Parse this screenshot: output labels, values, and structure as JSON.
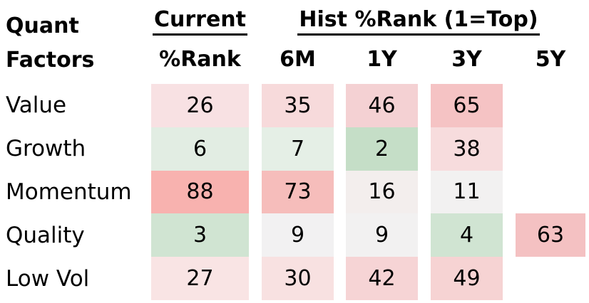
{
  "header": {
    "corner": {
      "line1": "Quant",
      "line2": "Factors"
    },
    "groups": [
      {
        "label": "Current"
      },
      {
        "label": "Hist %Rank (1=Top)"
      }
    ]
  },
  "table": {
    "columns": [
      "%Rank",
      "6M",
      "1Y",
      "3Y",
      "5Y"
    ],
    "rows": [
      {
        "label": "Value",
        "cells": [
          {
            "value": "26",
            "bg": "#f8e1e3"
          },
          {
            "value": "35",
            "bg": "#f7dadb"
          },
          {
            "value": "46",
            "bg": "#f4d1d3"
          },
          {
            "value": "65",
            "bg": "#f5c3c4"
          },
          null
        ]
      },
      {
        "label": "Growth",
        "cells": [
          {
            "value": "6",
            "bg": "#e2ede3"
          },
          {
            "value": "7",
            "bg": "#e5efe6"
          },
          {
            "value": "2",
            "bg": "#c5dec7"
          },
          {
            "value": "38",
            "bg": "#f7dcdd"
          },
          null
        ]
      },
      {
        "label": "Momentum",
        "cells": [
          {
            "value": "88",
            "bg": "#f8b2af"
          },
          {
            "value": "73",
            "bg": "#f6bdbb"
          },
          {
            "value": "16",
            "bg": "#f3eeed"
          },
          {
            "value": "11",
            "bg": "#f2f1f1"
          },
          null
        ]
      },
      {
        "label": "Quality",
        "cells": [
          {
            "value": "3",
            "bg": "#d0e4d2"
          },
          {
            "value": "9",
            "bg": "#f2f1f2"
          },
          {
            "value": "9",
            "bg": "#f2f1f1"
          },
          {
            "value": "4",
            "bg": "#d0e4d2"
          },
          {
            "value": "63",
            "bg": "#f4c1c2"
          }
        ]
      },
      {
        "label": "Low Vol",
        "cells": [
          {
            "value": "27",
            "bg": "#f9e4e4"
          },
          {
            "value": "30",
            "bg": "#f8e1e1"
          },
          {
            "value": "42",
            "bg": "#f6d4d5"
          },
          {
            "value": "49",
            "bg": "#f6d3d3"
          },
          null
        ]
      }
    ]
  },
  "colors": {
    "good_rank_green": "#c5dec7",
    "neutral": "#f2f1f1",
    "bad_rank_red": "#f8b2af",
    "text": "#000000",
    "background": "#ffffff"
  },
  "chart_data": {
    "type": "heatmap",
    "title": "Quant Factors — Current %Rank / Hist %Rank (1=Top)",
    "rows": [
      "Value",
      "Growth",
      "Momentum",
      "Quality",
      "Low Vol"
    ],
    "columns": [
      "Current %Rank",
      "6M",
      "1Y",
      "3Y",
      "5Y"
    ],
    "values": [
      [
        26,
        35,
        46,
        65,
        null
      ],
      [
        6,
        7,
        2,
        38,
        null
      ],
      [
        88,
        73,
        16,
        11,
        null
      ],
      [
        3,
        9,
        9,
        4,
        63
      ],
      [
        27,
        30,
        42,
        49,
        null
      ]
    ],
    "color_scale": "green = low %Rank (1=Top, good), white/neutral = low-mid, red = high %Rank (poor)",
    "legend_position": "none",
    "grid": false
  }
}
